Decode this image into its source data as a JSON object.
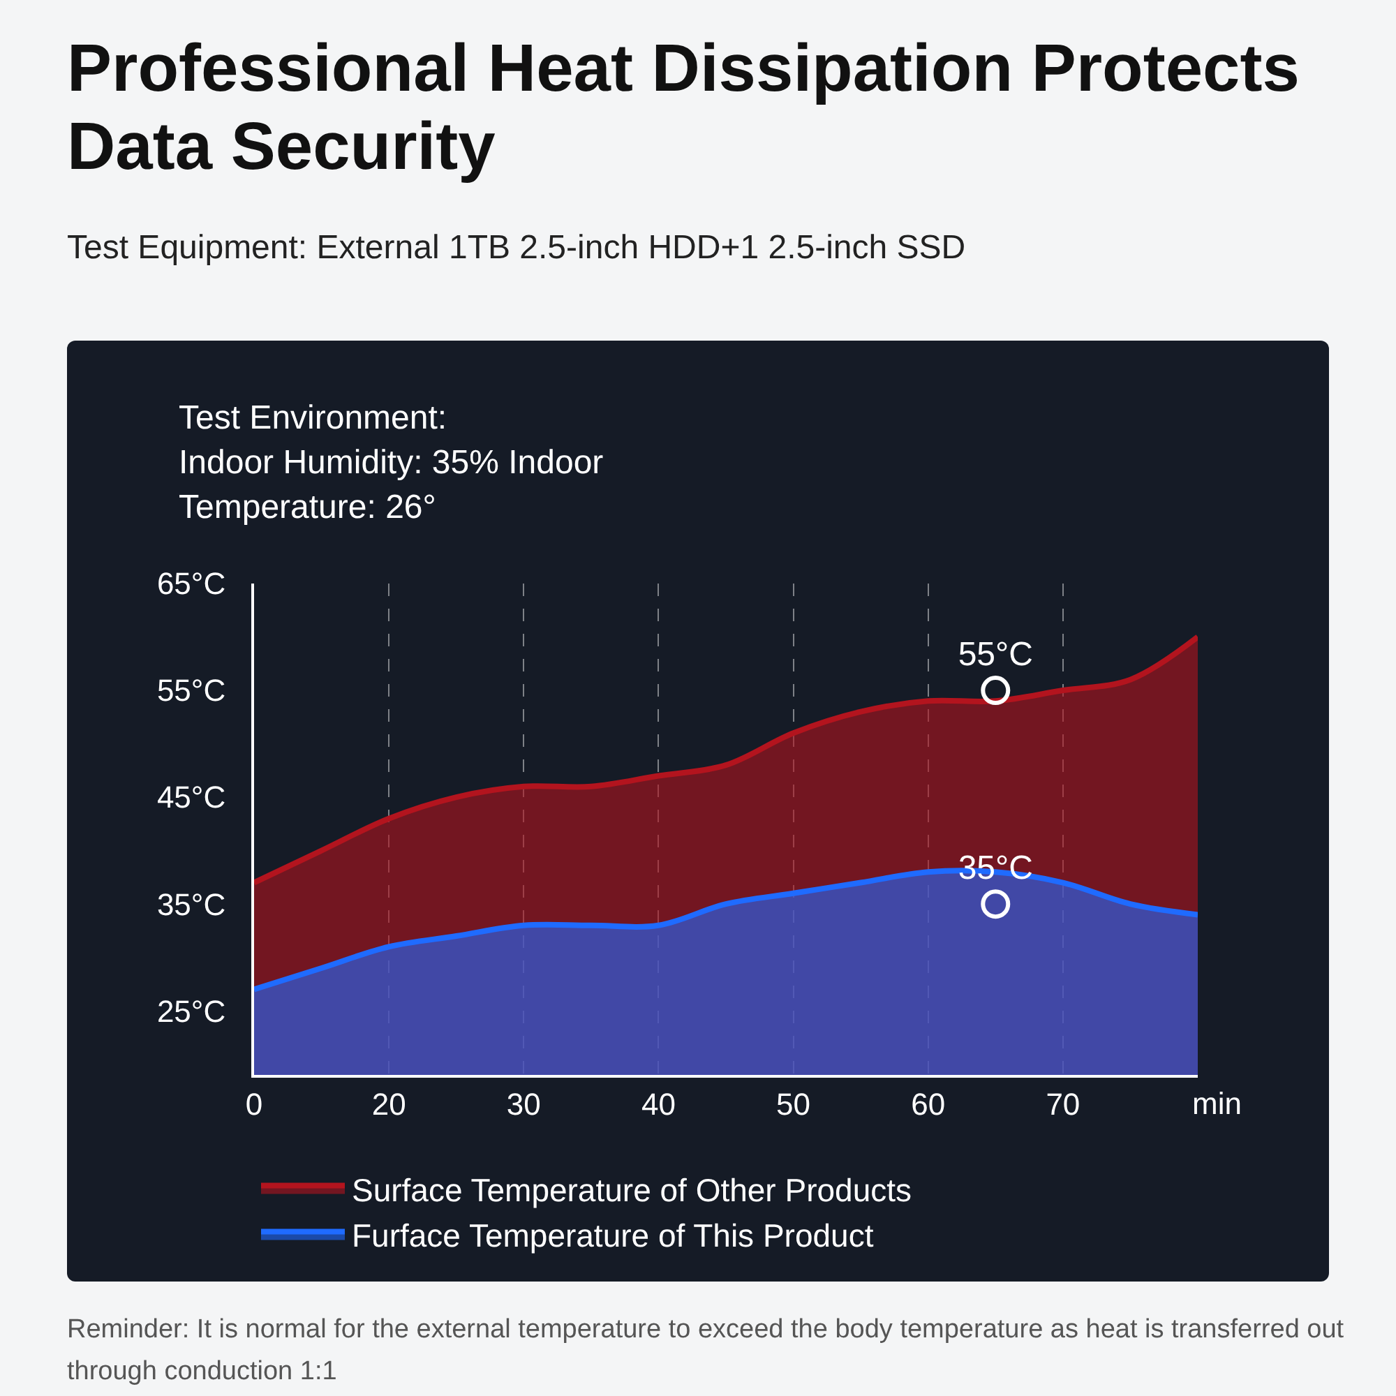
{
  "chart_data": {
    "type": "area",
    "title": "Professional Heat Dissipation Protects Data Security",
    "subtitle": "Test Equipment: External 1TB 2.5-inch HDD+1 2.5-inch SSD",
    "annotations": [
      "Test Environment:\nIndoor Humidity: 35% Indoor\nTemperature: 26°",
      "Reminder: It is normal for the external temperature to exceed the body temperature as heat is transferred out through conduction 1:1"
    ],
    "xlabel": "min",
    "categories": [
      "0",
      null,
      "20",
      null,
      "30",
      null,
      "40",
      null,
      "50",
      null,
      "60",
      null,
      "70",
      null,
      null
    ],
    "series": [
      {
        "name": "Surface Temperature of Other Products",
        "color": "#b3141e",
        "values": [
          37,
          40,
          43,
          45,
          46,
          46,
          47,
          48,
          51,
          53,
          54,
          54,
          55,
          56,
          60
        ]
      },
      {
        "name": "Furface Temperature of This Product",
        "color": "#1f6bff",
        "values": [
          27,
          29,
          31,
          32,
          33,
          33,
          33,
          35,
          36,
          37,
          38,
          38,
          37,
          35,
          34
        ]
      },
      {
        "type": "scatter",
        "marker": "circle",
        "color": "#ffffff",
        "values": [
          null,
          null,
          null,
          null,
          null,
          null,
          null,
          null,
          null,
          null,
          null,
          55,
          null,
          null,
          null
        ],
        "value_labels": [
          null,
          null,
          null,
          null,
          null,
          null,
          null,
          null,
          null,
          null,
          null,
          "55°C",
          null,
          null,
          null
        ]
      },
      {
        "type": "scatter",
        "marker": "circle",
        "color": "#ffffff",
        "values": [
          null,
          null,
          null,
          null,
          null,
          null,
          null,
          null,
          null,
          null,
          null,
          35,
          null,
          null,
          null
        ],
        "value_labels": [
          null,
          null,
          null,
          null,
          null,
          null,
          null,
          null,
          null,
          null,
          null,
          "35°C",
          null,
          null,
          null
        ]
      }
    ],
    "ylim": [
      19,
      65
    ],
    "yticks": [
      {
        "value": 25,
        "label": "25°C"
      },
      {
        "value": 35,
        "label": "35°C"
      },
      {
        "value": 45,
        "label": "45°C"
      },
      {
        "value": 55,
        "label": "55°C"
      },
      {
        "value": 65,
        "label": "65°C"
      }
    ],
    "grid": "x",
    "legend": "bottom left"
  }
}
